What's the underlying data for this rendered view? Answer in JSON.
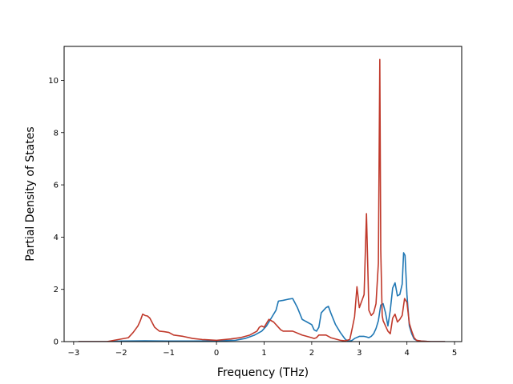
{
  "chart_data": {
    "type": "line",
    "xlabel": "Frequency (THz)",
    "ylabel": "Partial Density of States",
    "xlim": [
      -3.2,
      5.15
    ],
    "ylim": [
      0,
      11.3
    ],
    "xticks": [
      -3,
      -2,
      -1,
      0,
      1,
      2,
      3,
      4,
      5
    ],
    "yticks": [
      0,
      2,
      4,
      6,
      8,
      10
    ],
    "grid": false,
    "series": [
      {
        "color": "#1f77b4",
        "x": [
          -2.9,
          -2.3,
          -2.0,
          -1.5,
          -1.0,
          -0.5,
          0.0,
          0.4,
          0.6,
          0.8,
          0.95,
          1.05,
          1.15,
          1.25,
          1.3,
          1.4,
          1.5,
          1.6,
          1.7,
          1.8,
          1.9,
          2.0,
          2.05,
          2.1,
          2.15,
          2.2,
          2.25,
          2.3,
          2.35,
          2.4,
          2.5,
          2.6,
          2.7,
          2.75,
          2.8,
          2.85,
          2.9,
          3.0,
          3.1,
          3.15,
          3.2,
          3.25,
          3.3,
          3.35,
          3.4,
          3.45,
          3.5,
          3.55,
          3.6,
          3.65,
          3.7,
          3.75,
          3.8,
          3.85,
          3.9,
          3.93,
          3.96,
          4.0,
          4.05,
          4.1,
          4.15,
          4.2,
          4.3,
          4.5,
          4.8
        ],
        "values": [
          0,
          0,
          0.02,
          0.03,
          0.02,
          0.02,
          0.03,
          0.05,
          0.12,
          0.25,
          0.4,
          0.6,
          0.9,
          1.2,
          1.55,
          1.58,
          1.62,
          1.65,
          1.3,
          0.85,
          0.75,
          0.65,
          0.45,
          0.4,
          0.55,
          1.1,
          1.2,
          1.3,
          1.35,
          1.1,
          0.65,
          0.35,
          0.1,
          0.03,
          0.02,
          0.05,
          0.12,
          0.2,
          0.2,
          0.18,
          0.15,
          0.2,
          0.3,
          0.5,
          0.8,
          1.4,
          1.45,
          1.1,
          0.6,
          1.2,
          2.05,
          2.25,
          1.75,
          1.8,
          2.2,
          3.4,
          3.3,
          1.8,
          0.6,
          0.3,
          0.1,
          0.05,
          0.02,
          0,
          0
        ]
      },
      {
        "color": "#c0392b",
        "x": [
          -2.9,
          -2.3,
          -2.0,
          -1.85,
          -1.75,
          -1.65,
          -1.6,
          -1.55,
          -1.5,
          -1.45,
          -1.4,
          -1.3,
          -1.2,
          -1.1,
          -1.0,
          -0.9,
          -0.7,
          -0.5,
          -0.3,
          0.0,
          0.3,
          0.5,
          0.7,
          0.85,
          0.9,
          0.95,
          1.0,
          1.05,
          1.1,
          1.15,
          1.2,
          1.3,
          1.35,
          1.4,
          1.6,
          1.8,
          2.0,
          2.05,
          2.1,
          2.15,
          2.3,
          2.4,
          2.5,
          2.6,
          2.7,
          2.8,
          2.85,
          2.9,
          2.95,
          3.0,
          3.1,
          3.15,
          3.2,
          3.25,
          3.3,
          3.35,
          3.4,
          3.43,
          3.45,
          3.48,
          3.5,
          3.55,
          3.6,
          3.65,
          3.7,
          3.75,
          3.8,
          3.85,
          3.9,
          3.95,
          4.0,
          4.05,
          4.1,
          4.15,
          4.2,
          4.3,
          4.5,
          4.8
        ],
        "values": [
          0,
          0,
          0.1,
          0.15,
          0.35,
          0.6,
          0.8,
          1.05,
          1.0,
          0.98,
          0.9,
          0.55,
          0.4,
          0.38,
          0.35,
          0.25,
          0.2,
          0.12,
          0.08,
          0.05,
          0.1,
          0.15,
          0.25,
          0.4,
          0.55,
          0.6,
          0.55,
          0.7,
          0.85,
          0.8,
          0.75,
          0.55,
          0.45,
          0.4,
          0.4,
          0.25,
          0.15,
          0.12,
          0.15,
          0.25,
          0.25,
          0.15,
          0.1,
          0.05,
          0.03,
          0.08,
          0.5,
          0.95,
          2.1,
          1.3,
          1.8,
          4.9,
          1.2,
          1.0,
          1.1,
          1.45,
          3.0,
          10.8,
          3.5,
          1.0,
          0.8,
          0.6,
          0.4,
          0.3,
          0.9,
          1.05,
          0.75,
          0.85,
          1.0,
          1.65,
          1.5,
          0.7,
          0.4,
          0.15,
          0.05,
          0.02,
          0,
          0
        ]
      }
    ]
  }
}
